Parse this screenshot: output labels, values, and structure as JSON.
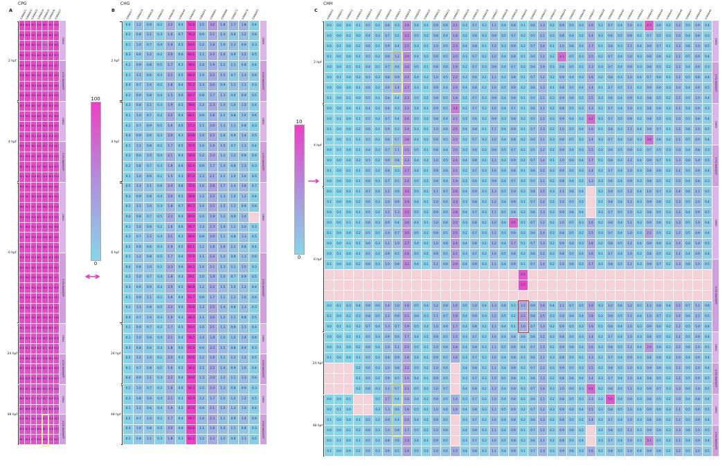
{
  "colors": {
    "low": "#85d6e8",
    "high": "#ee3fc6",
    "na": "#f5d2d8",
    "bar_block_a": "#dcb5ea",
    "bar_block_b": "#cf9fe0",
    "highlight_yellow": "#f2e93c",
    "highlight_red": "#e02418",
    "arrow_magenta": "#e23fc4"
  },
  "scales": [
    {
      "max_label": "100",
      "min_label": "0"
    },
    {
      "max_label": "10",
      "min_label": "0"
    }
  ],
  "arrows": [
    {
      "glyph": "↔"
    },
    {
      "glyph": "→"
    }
  ],
  "row_groups": [
    {
      "label": "2 hpf",
      "blocks": [
        {
          "label": "DMSO",
          "rows": 4
        },
        {
          "label": "0.5% MeOH/SPF",
          "rows": 4
        }
      ]
    },
    {
      "label": "4 hpf",
      "blocks": [
        {
          "label": "DMSO",
          "rows": 4
        },
        {
          "label": "0.5% MeOH/SPF",
          "rows": 4
        }
      ]
    },
    {
      "label": "6 hpf",
      "blocks": [
        {
          "label": "DMSO",
          "rows": 7
        },
        {
          "label": "0.5% MeOH/SPF",
          "rows": 7
        }
      ]
    },
    {
      "label": "24 hpf",
      "blocks": [
        {
          "label": "DMSO",
          "rows": 3
        },
        {
          "label": "0.5% MeOH/SPF",
          "rows": 3
        }
      ]
    },
    {
      "label": "48 hpf",
      "blocks": [
        {
          "label": "DMSO",
          "rows": 3
        },
        {
          "label": "0.5% MeOH/SPF",
          "rows": 3
        }
      ]
    }
  ],
  "highlights": [
    {
      "panel": "A",
      "col": 4,
      "row_start": 39,
      "row_end": 41,
      "color": "#f2e93c"
    },
    {
      "panel": "C",
      "col": 7,
      "row_start": 3,
      "row_end": 6,
      "color": "#f2e93c"
    },
    {
      "panel": "C",
      "col": 7,
      "row_start": 12,
      "row_end": 13,
      "color": "#f2e93c"
    },
    {
      "panel": "C",
      "col": 7,
      "row_start": 35,
      "row_end": 36,
      "color": "#f2e93c"
    },
    {
      "panel": "C",
      "col": 7,
      "row_start": 38,
      "row_end": 39,
      "color": "#f2e93c"
    },
    {
      "panel": "C",
      "col": 20,
      "row_start": 27,
      "row_end": 29,
      "color": "#e02418"
    }
  ],
  "chart_data": [
    {
      "type": "heatmap",
      "panel": "A",
      "context": "CPG",
      "letter": "A",
      "value_range": [
        0,
        100
      ],
      "colormap": "cyan-to-magenta",
      "legend": "0-100",
      "columns": [
        "S396A01",
        "S396A02",
        "S396A03",
        "S396A04",
        "S396A05",
        "S396A06",
        "S396A07"
      ],
      "rows": [
        "96.6 94.8 95.2 93.9 96.1 94.4 95.0",
        "95.8 96.3 94.1 95.5 93.8 96.0 94.7",
        "94.9 95.6 96.2 94.3 75.1 93.6 96.4",
        "96.0 93.7 95.4 96.1 94.8 95.9 93.5",
        "95.3 96.5 93.9 94.6 96.2 94.0 95.7",
        "93.8 95.0 96.6 95.2 93.4 96.1 94.9",
        "96.2 94.5 95.8 93.6 95.0 94.2 96.3",
        "94.4 96.0 93.5 95.9 94.1 95.6 93.9",
        "95.7 93.9 96.1 94.7 95.3 96.4 94.0",
        "93.6 95.2 94.8 96.3 93.7 95.1 96.0",
        "96.4 94.1 95.5 93.8 96.2 94.6 95.3",
        "94.7 96.2 93.4 95.6 94.3 95.8 93.7",
        "95.9 93.5 96.0 94.4 95.7 93.8 96.1",
        "93.3 95.8 94.2 96.5 93.9 95.4 94.5",
        "96.1 94.6 95.3 93.7 96.0 94.8 95.2",
        "94.2 95.7 93.8 95.1 94.5 96.3 93.6",
        "95.5 96.1 94.0 95.8 93.5 94.9 96.2",
        "93.9 94.7 96.3 93.6 95.2 96.0 94.3",
        "96.0 95.3 93.7 94.8 96.4 93.8 95.6",
        "94.5 93.8 95.9 96.2 94.1 95.5 93.4",
        "95.1 96.4 94.3 93.9 95.7 94.2 96.0",
        "93.7 94.9 95.6 94.4 93.6 96.1 95.0",
        "96.3 93.6 94.7 95.3 96.0 93.9 94.6",
        "94.8 95.5 93.3 96.1 94.4 95.8 93.8",
        "95.4 94.0 96.2 93.7 95.9 94.5 96.3",
        "93.5 96.0 94.6 95.4 93.8 96.2 94.1",
        "96.5 94.3 95.0 93.5 96.3 94.7 95.9",
        "94.1 95.9 93.6 96.0 94.2 95.3 93.7",
        "95.6 93.4 96.4 94.9 95.5 93.6 96.1",
        "93.4 95.1 94.5 96.3 93.3 95.7 94.8",
        "88.2 90.5 87.9 89.4 91.0 88.6 90.1",
        "90.8 87.6 89.9 91.2 88.3 90.4 87.8",
        "87.5 91.1 88.8 90.0 87.7 89.6 91.3",
        "91.0 88.4 90.6 87.3 91.4 88.9 90.2",
        "88.7 90.9 87.4 89.8 88.1 91.2 89.5",
        "90.3 87.8 91.5 88.5 90.7 87.6 89.9",
        "85.4 87.1 84.8 86.5 85.0 87.3 84.6",
        "86.9 84.5 87.2 85.3 86.7 84.9 87.0",
        "84.7 86.8 85.1 87.4 84.4 86.2 85.6",
        "87.0 85.2 86.4 84.6 87.1 85.8 86.3",
        "85.5 87.3 84.3 86.6 85.7 84.8 87.2",
        "86.1 84.9 87.5 85.4 86.0 87.1 84.5"
      ]
    },
    {
      "type": "heatmap",
      "panel": "B",
      "context": "CHG",
      "letter": "B",
      "value_range": [
        0,
        10
      ],
      "colormap": "cyan-to-magenta",
      "legend": "0-10",
      "columns": [
        "S396A17",
        "S396A24",
        "S396A28",
        "S396A33",
        "S396A39",
        "S396A44",
        "S396A50",
        "S396A55",
        "S396A61",
        "S396A66",
        "S396A72",
        "S396A78",
        "S396A83"
      ],
      "rows": [
        "0.0 1.2 0.9 0.2 2.2 0.4 51.8 1.5 3.2 1.8 1.7 1.8 0.4",
        "0.2 0.8 1.1 0.3 1.6 0.7 76.3 0.9 2.1 1.4 0.8 1.2 0.6",
        "0.1 1.0 0.7 0.4 1.9 0.5 64.6 1.2 1.8 1.0 1.3 0.9 0.3",
        "0.3 0.6 1.2 0.2 2.0 0.6 60.1 1.1 2.4 1.6 0.9 1.5 0.5",
        "0.2 0.9 0.8 0.5 1.7 0.3 58.4 1.4 1.9 1.2 1.1 0.8 0.4",
        "0.1 1.1 0.6 0.3 2.1 0.5 68.9 1.0 2.2 1.5 0.7 1.3 0.6",
        "0.4 0.7 1.0 0.2 1.8 0.4 55.2 1.3 2.0 0.9 1.2 1.1 0.3",
        "0.2 0.9 0.8 0.4 1.5 0.6 62.7 0.8 1.7 1.3 0.6 0.9 0.5",
        "0.3 0.8 1.1 0.3 1.9 0.5 59.6 1.2 2.3 1.4 1.0 1.2 0.4",
        "0.1 1.0 0.7 0.2 2.2 0.4 66.1 0.9 1.8 1.1 0.8 1.0 0.6",
        "0.2 0.7 0.9 0.5 1.6 0.6 57.3 1.1 2.0 1.3 1.1 0.8 0.3",
        "0.4 0.9 0.6 0.3 2.0 0.3 63.8 1.4 2.2 1.0 0.9 1.4 0.5",
        "0.1 1.1 0.8 0.2 1.7 0.5 70.5 1.0 1.9 1.5 0.7 1.1 0.4",
        "0.3 0.6 1.0 0.4 2.1 0.4 54.9 1.2 2.4 1.2 1.2 0.9 0.6",
        "0.2 0.8 0.7 0.3 1.8 0.6 61.4 0.9 1.7 1.4 0.8 1.3 0.3",
        "0.1 1.0 0.9 0.2 1.5 0.3 67.2 1.3 2.1 1.1 1.0 1.0 0.5",
        "0.5 1.3 1.1 0.6 2.4 0.8 72.6 1.6 2.8 1.7 1.4 1.6 0.7",
        "0.3 0.9 0.8 0.4 2.0 0.5 58.8 1.2 2.2 1.3 1.0 1.2 0.4",
        "0.2 1.1 1.0 0.3 1.8 0.7 65.3 1.4 2.5 1.5 1.2 0.9 0.6",
        "0.4 0.8 0.7 0.5 2.2 0.4 60.9 1.0 1.9 1.2 0.9 1.4 na",
        "0.1 1.0 0.9 0.2 1.6 0.6 56.7 1.3 2.3 1.4 1.1 1.0 0.3",
        "0.3 0.7 1.2 0.4 2.1 0.3 69.4 0.9 2.0 1.1 0.8 1.3 0.5",
        "0.2 0.9 0.6 0.3 1.9 0.5 62.1 1.2 1.8 1.6 1.2 0.8 0.4",
        "0.1 1.2 0.8 0.5 1.7 0.4 57.9 1.1 2.4 1.2 0.9 1.1 0.6",
        "0.4 0.8 1.0 0.2 2.3 0.6 64.2 1.4 2.1 1.3 1.1 1.5 0.3",
        "0.2 1.0 0.7 0.4 1.8 0.3 59.1 1.0 1.9 1.0 0.7 0.9 0.5",
        "0.3 0.6 0.9 0.3 2.0 0.5 66.8 1.2 2.2 1.5 1.0 1.2 0.4",
        "0.1 0.9 1.1 0.2 1.6 0.4 61.7 0.9 1.7 1.1 1.2 1.0 0.6",
        "0.2 1.1 0.8 0.5 2.2 0.6 55.8 1.3 2.5 1.4 0.8 1.3 0.3",
        "0.4 0.7 1.0 0.3 1.9 0.3 68.3 1.1 2.0 1.2 1.1 0.8 0.5",
        "0.2 0.9 0.7 0.2 1.7 0.5 63.4 1.0 2.1 1.3 0.9 1.1 0.4",
        "0.1 1.0 0.9 0.4 2.1 0.4 58.2 1.4 1.8 1.0 1.0 1.4 0.6",
        "0.3 0.8 0.6 0.3 1.8 0.6 65.9 0.9 2.3 1.5 0.8 0.9 0.3",
        "0.2 1.2 1.0 0.2 2.0 0.3 60.6 1.2 1.9 1.1 1.2 1.2 0.5",
        "0.1 0.7 0.8 0.5 1.6 0.5 56.4 1.1 2.2 1.4 0.9 1.0 0.4",
        "0.4 0.9 1.1 0.3 2.2 0.4 69.8 1.3 2.0 1.2 1.1 1.3 0.6",
        "0.2 1.0 0.7 0.2 1.8 0.6 54.3 1.0 2.4 1.3 0.8 0.9 0.3",
        "0.3 0.8 0.9 0.4 2.1 0.3 62.9 1.2 1.7 1.0 1.0 1.2 0.5",
        "0.1 1.1 0.6 0.3 1.9 0.5 67.6 0.9 2.1 1.5 1.2 1.0 0.4",
        "0.2 0.7 1.0 0.2 1.7 0.4 59.7 1.4 2.3 1.1 0.9 1.4 0.6",
        "0.4 1.0 0.8 0.5 2.0 0.6 64.8 1.1 1.8 1.4 1.1 0.8 0.3",
        "0.2 0.8 1.1 0.3 1.8 0.3 61.2 1.2 2.2 1.2 0.8 1.1 0.5"
      ]
    },
    {
      "type": "heatmap",
      "panel": "C",
      "context": "CHH",
      "letter": "C",
      "value_range": [
        0,
        10
      ],
      "colormap": "cyan-to-magenta",
      "legend": "0-10",
      "columns": [
        "S396A10",
        "S396A11",
        "S396A12",
        "S396A13",
        "S396A14",
        "S396A15",
        "S396A16",
        "S396A17",
        "S396A18",
        "S396A19",
        "S396A20",
        "S396A21",
        "S396A22",
        "S396A23",
        "S396A24",
        "S396A25",
        "S396A26",
        "S396A27",
        "S396A28",
        "S396A29",
        "S396A30",
        "S396A31",
        "S396A32",
        "S396A33",
        "S396A34",
        "S396A35",
        "S396A36",
        "S396A37",
        "S396A38",
        "S396A39",
        "S396A40",
        "S396A41",
        "S396A42",
        "S396A43",
        "S396A44",
        "S396A45",
        "S396A46",
        "S396A47",
        "S396A48",
        "S396A49"
      ],
      "rows": [
        "0.0 0.0 0.0 0.1 0.5 0.2 0.8 0.3 2.8 0.4 0.1 0.9 0.6 2.1 0.3 0.7 0.2 1.1 0.4 0.8 0.1 0.6 1.3 0.2 0.9 0.5 0.3 1.6 0.2 0.7 0.4 1.0 0.3 4.7 0.6 0.2 1.2 0.5 0.9 0.4",
        "0.0 0.0 0.1 0.0 0.4 0.3 0.7 0.2 3.1 0.5 0.2 0.8 0.4 1.8 0.2 0.6 0.3 0.9 0.5 0.7 0.2 0.5 1.1 0.3 0.8 0.4 0.2 1.4 0.3 0.6 0.5 0.9 0.2 0.7 0.5 0.3 1.0 0.4 0.8 0.3",
        "0.0 0.1 0.0 0.2 0.6 0.1 0.9 0.4 2.5 0.3 0.1 1.0 0.5 2.3 0.4 0.8 0.1 1.2 0.3 0.9 0.2 0.7 1.4 0.1 1.0 0.6 0.4 1.7 0.1 0.8 0.3 1.1 0.4 0.9 0.7 0.1 1.3 0.6 1.0 0.5",
        "0.1 0.0 0.0 0.1 0.5 0.2 0.8 1.2 2.9 0.4 0.2 0.9 0.5 2.0 0.3 0.7 0.2 1.0 0.4 0.8 0.1 0.6 1.2 0.2 4.1 0.5 0.3 1.5 0.2 0.7 0.4 1.0 0.3 0.8 0.6 0.2 1.1 0.5 0.9 0.4",
        "0.0 0.0 0.1 0.1 0.4 0.2 0.7 0.6 2.6 0.5 0.1 0.8 0.6 1.9 0.2 0.7 0.3 0.9 0.4 0.7 0.2 0.6 1.0 0.3 0.8 0.5 0.2 1.3 0.3 0.7 0.4 0.9 0.3 0.8 0.5 0.2 1.1 0.4 0.9 0.3",
        "0.0 0.1 0.0 0.2 0.5 0.3 0.8 0.9 2.4 0.4 0.2 1.0 0.5 2.2 0.3 0.6 0.2 1.1 0.3 0.8 0.1 0.7 1.2 0.2 0.9 0.4 0.3 1.6 0.2 0.8 0.3 1.0 0.4 0.7 0.6 0.1 1.2 0.5 0.8 0.4",
        "0.0 0.0 0.0 0.1 0.6 0.2 0.9 1.4 2.7 0.3 0.1 0.9 0.4 2.0 0.4 0.8 0.2 1.0 0.5 0.9 0.2 0.6 1.3 0.1 0.8 0.5 0.4 1.4 0.1 0.7 0.5 1.1 0.2 0.9 0.6 0.3 1.0 0.4 0.9 0.5",
        "0.1 0.0 0.1 0.0 0.5 0.1 0.8 0.4 2.3 0.5 0.2 0.8 0.5 1.8 0.2 0.7 0.3 0.9 0.4 0.8 0.1 0.5 1.1 0.3 0.9 0.6 0.2 1.5 0.3 0.6 0.4 0.9 0.3 0.8 0.5 0.2 1.2 0.5 1.0 0.4",
        "0.0 0.0 0.0 0.1 0.4 0.2 0.8 0.3 2.2 0.4 0.1 0.9 0.5 3.4 0.2 0.7 0.2 1.0 0.4 0.7 0.1 0.6 1.1 0.2 0.8 0.5 0.3 1.3 0.2 0.7 0.4 1.0 0.3 0.8 0.6 0.2 1.1 0.4 0.9 0.3",
        "0.0 0.1 0.0 0.1 0.5 0.2 0.7 0.4 2.6 0.5 0.2 0.8 0.4 2.1 0.3 0.6 0.2 0.9 0.3 0.8 0.2 0.5 1.2 0.3 0.9 0.4 0.2 4.2 0.3 0.7 0.5 0.9 0.2 0.8 0.5 0.3 1.0 0.5 0.8 0.4",
        "0.1 0.0 0.0 0.2 0.6 0.1 0.9 0.3 2.4 0.3 0.1 1.0 0.6 2.5 0.4 0.8 0.1 1.1 0.4 0.9 0.1 0.7 1.3 0.2 1.0 0.5 0.4 1.6 0.1 0.8 0.3 1.1 0.4 0.9 0.7 0.1 1.2 0.6 1.0 0.5",
        "0.0 0.0 0.1 0.1 0.5 0.2 0.8 0.7 2.8 0.4 0.2 0.9 0.5 2.2 0.2 0.7 0.3 1.0 0.4 0.8 0.2 0.6 1.1 0.3 0.8 0.5 0.2 1.4 0.3 0.7 0.4 1.0 0.3 3.8 0.6 0.2 1.1 0.5 0.9 0.4",
        "0.0 0.1 0.0 0.1 0.4 0.3 0.7 1.1 2.5 0.5 0.1 0.8 0.4 2.0 0.3 0.6 0.2 0.9 0.5 0.7 0.1 0.5 1.2 0.2 0.9 0.4 0.3 1.5 0.2 0.6 0.5 0.9 0.2 0.7 0.5 0.3 1.0 0.4 0.8 0.3",
        "0.0 0.0 0.0 0.2 0.5 0.2 0.9 0.8 2.3 0.4 0.2 1.0 0.5 2.4 0.4 0.8 0.2 1.1 0.3 0.9 0.2 0.7 1.4 0.1 1.0 0.6 0.4 1.7 0.1 0.8 0.3 1.1 0.4 0.9 0.7 0.1 1.3 0.6 1.0 0.5",
        "0.1 0.0 0.1 0.1 0.5 0.2 0.8 0.3 2.7 0.4 0.1 0.9 0.6 2.1 0.2 0.7 0.3 1.0 0.4 0.8 0.1 0.6 1.2 0.3 0.9 0.5 0.3 1.4 0.2 0.7 0.4 1.0 0.3 0.8 0.6 0.2 1.1 0.5 0.9 0.4",
        "0.0 0.0 0.0 0.1 0.6 0.3 0.7 0.5 2.4 0.5 0.2 0.8 0.4 1.9 0.3 0.6 0.2 0.9 0.4 0.7 0.2 0.5 1.1 0.2 0.8 0.4 0.2 1.3 0.3 0.6 0.4 0.9 0.3 0.8 0.5 0.2 1.0 0.4 0.8 0.3",
        "0.0 0.0 0.1 0.1 0.7 0.4 1.2 0.6 3.2 0.5 0.2 1.1 0.7 2.6 0.4 0.9 0.3 1.3 0.5 1.0 0.2 0.8 1.5 0.3 1.1 0.6 0.4 na 0.2 0.9 0.5 1.2 0.4 1.0 0.7 0.3 1.4 0.6 1.1 0.5",
        "0.1 0.0 0.0 0.2 0.6 0.3 1.0 0.9 2.9 0.4 0.1 1.0 0.6 2.3 0.3 0.8 0.2 1.2 0.4 0.9 0.1 0.7 1.4 0.2 1.0 0.5 0.3 na 0.1 0.8 0.4 1.1 0.3 0.9 0.6 0.2 1.3 0.5 1.0 0.4",
        "0.0 0.1 0.0 0.1 0.5 0.2 1.1 1.3 3.5 0.5 0.2 0.9 0.5 2.8 0.4 0.7 0.3 1.1 0.5 0.8 0.2 0.6 1.3 0.3 0.9 0.6 0.4 na 0.3 0.7 0.5 1.0 0.2 0.8 0.5 0.3 1.2 0.4 0.9 0.5",
        "0.0 0.0 0.1 0.1 0.6 0.3 0.9 0.4 2.6 0.4 0.1 1.0 0.6 2.2 0.3 0.8 0.2 1.0 0.4 4.6 0.1 0.7 1.2 0.2 1.0 0.5 0.3 1.6 0.2 0.8 0.4 1.1 0.3 0.9 0.6 0.2 1.3 0.5 1.0 0.4",
        "0.1 0.0 0.0 0.2 0.5 0.2 1.0 0.7 3.0 0.5 0.2 0.9 0.5 2.5 0.2 0.7 0.3 1.1 0.3 0.9 0.2 0.6 1.4 0.3 0.8 0.5 0.2 1.5 0.3 0.7 0.4 1.0 0.3 2.1 0.5 0.2 1.2 0.5 0.9 0.4",
        "0.0 0.0 0.1 0.1 0.6 0.3 1.1 1.0 2.7 0.4 0.1 1.0 0.6 2.4 0.4 0.8 0.2 1.2 0.4 1.7 0.1 0.7 1.3 0.2 0.9 0.6 0.3 1.8 0.2 0.8 0.5 1.1 0.4 0.9 0.6 0.3 1.4 0.6 1.0 0.5",
        "0.0 0.1 0.0 0.1 0.5 0.2 0.9 0.5 2.8 0.5 0.2 0.9 0.5 2.1 0.3 0.7 0.2 1.0 0.5 0.8 0.2 0.6 1.2 0.3 0.8 0.5 0.4 1.6 0.1 0.7 0.4 1.0 0.2 0.8 0.5 0.2 1.1 0.4 0.9 0.4",
        "0.1 0.0 0.0 0.2 0.6 0.3 1.0 0.8 3.1 0.4 0.1 1.1 0.6 2.6 0.4 0.9 0.3 1.1 0.4 0.9 0.1 0.7 1.4 0.2 1.0 0.6 0.3 1.7 0.2 0.8 0.5 1.1 0.3 0.9 0.7 0.2 1.3 0.6 1.0 0.5",
        "na na na na na na na na na na na na na na na na na na na na 5.1 na na na na na na na na na na na na na na na na na na na",
        "na na na na na na na na na na na na na na na na na na na na 5.7 na na na na na na na na na na na na na na na na na na na",
        "na na na na na na na na na na na na na na na na na na na na na na na na na na na na na na na na na na na na na na na na",
        "0.0 0.1 0.3 0.4 0.9 0.6 1.4 1.0 1.8 0.5 0.4 1.2 0.8 1.6 0.5 1.0 0.4 1.3 0.6 0.3 1.5 0.9 1.6 0.4 1.1 0.7 0.5 1.9 0.3 1.0 0.6 1.2 0.5 1.1 0.8 0.4 1.5 0.7 1.2 0.6",
        "0.1 0.0 0.2 0.3 0.8 0.5 1.2 0.9 2.1 0.6 0.3 1.1 0.7 1.9 0.4 0.9 0.3 1.2 0.5 0.2 2.1 0.8 1.5 0.3 1.0 0.6 0.4 1.8 0.2 0.9 0.5 1.1 0.4 1.0 0.7 0.3 1.4 0.6 1.1 0.5",
        "0.0 0.1 0.1 0.2 0.7 0.4 1.3 0.7 1.9 0.5 0.2 1.0 0.6 1.7 0.3 0.8 0.2 1.1 0.4 0.1 1.6 0.7 1.3 0.2 0.9 0.5 0.3 1.6 0.1 0.8 0.4 1.0 0.3 0.9 0.6 0.2 1.2 0.5 1.0 0.4",
        "0.0 0.0 0.1 0.1 0.5 0.3 0.9 0.6 1.7 0.4 0.2 0.9 0.5 1.5 0.3 0.7 0.2 1.0 0.4 0.8 0.6 0.6 1.2 0.3 0.8 0.5 0.3 1.4 0.2 0.7 0.4 1.0 0.3 0.8 0.5 0.2 1.1 0.5 0.9 0.4",
        "0.0 0.1 0.0 0.2 0.6 0.2 1.0 1.1 2.0 0.5 0.1 1.0 0.6 1.8 0.4 0.8 0.3 1.1 0.5 0.9 0.4 0.7 1.3 0.2 0.9 0.6 0.4 1.6 0.3 0.8 0.5 1.1 0.4 2.6 0.6 0.3 1.2 0.6 1.0 0.5",
        "0.1 0.0 0.0 0.1 0.5 0.2 0.8 0.9 1.8 0.4 0.2 0.9 0.5 1.6 0.3 0.7 0.2 1.0 0.4 0.8 0.3 0.6 1.1 0.3 0.8 0.5 0.2 1.3 0.2 0.7 0.4 0.9 0.3 0.8 0.6 0.2 1.0 0.4 0.9 0.4",
        "na na na 0.2 0.6 0.3 1.0 0.8 2.2 0.5 0.2 1.0 0.6 na 0.4 0.8 0.2 1.1 0.4 0.9 0.2 0.7 1.2 0.3 0.9 0.5 0.3 1.5 0.2 0.8 0.5 1.0 0.3 0.9 0.6 0.3 1.1 0.5 1.0 0.4",
        "na na na 0.1 0.5 0.2 0.9 0.5 1.9 0.4 0.1 0.9 0.5 na 0.3 0.7 0.3 1.0 0.5 0.8 0.1 0.6 1.3 0.2 0.8 0.6 0.4 1.4 0.3 0.7 0.4 1.0 0.4 0.8 0.5 0.2 1.2 0.5 0.9 0.5",
        "na na na 0.2 0.6 0.3 1.1 0.7 2.1 0.5 0.2 1.0 0.7 na 0.4 0.8 0.2 1.2 0.4 0.9 0.3 0.7 1.4 0.3 1.0 0.6 0.3 4.4 0.2 0.8 0.5 1.1 0.3 0.9 0.7 0.3 1.3 0.6 1.0 0.5",
        "0.0 0.0 0.1 na na 0.2 1.7 0.4 1.6 0.4 0.2 0.9 0.5 1.4 0.3 0.7 0.2 1.0 0.4 0.8 0.1 0.6 1.1 0.2 0.8 0.5 0.3 1.3 0.2 5.0 0.4 0.9 0.3 0.8 0.5 0.2 1.0 0.4 0.8 0.4",
        "0.0 0.1 0.0 na na 0.3 1.3 0.6 1.8 0.5 0.1 1.0 0.6 1.6 0.4 0.8 0.3 1.1 0.5 0.9 0.2 0.7 1.2 0.3 0.9 0.6 0.4 1.5 0.3 0.8 0.5 1.0 0.4 0.9 0.6 0.3 1.1 0.5 0.9 0.5",
        "0.1 0.0 0.0 0.1 0.5 0.2 0.9 0.4 2.0 0.4 0.2 0.9 0.5 na 0.3 0.7 0.2 1.0 0.4 0.8 0.2 0.6 1.3 0.2 0.8 0.5 0.2 1.4 0.2 0.7 0.4 1.0 0.3 0.8 0.6 0.2 1.2 0.5 0.9 0.4",
        "0.0 0.0 0.1 0.2 0.6 0.3 1.0 0.8 1.7 0.5 0.2 1.0 0.6 na 0.4 0.8 0.3 1.1 0.4 0.9 0.1 0.7 1.2 0.3 0.9 0.6 0.3 na 0.2 0.8 0.5 1.1 0.3 0.9 0.6 0.3 1.3 0.6 1.0 0.5",
        "0.0 0.1 0.0 0.1 0.5 0.2 0.8 0.6 2.3 0.4 0.1 0.9 0.5 na 0.3 0.7 0.2 1.0 0.5 0.8 0.2 0.6 1.1 0.2 0.8 0.5 0.4 na 0.3 0.7 0.4 1.0 0.3 3.1 0.5 0.2 1.1 0.4 0.9 0.4",
        "0.1 0.0 0.0 0.2 0.6 0.3 0.9 0.5 1.9 0.5 0.2 1.0 0.6 1.5 0.4 0.8 0.3 1.1 0.4 0.9 0.1 0.7 1.3 0.3 0.9 0.6 0.3 1.6 0.2 0.8 0.5 1.0 0.4 0.9 0.6 0.2 1.2 0.5 1.0 0.5"
      ]
    }
  ]
}
